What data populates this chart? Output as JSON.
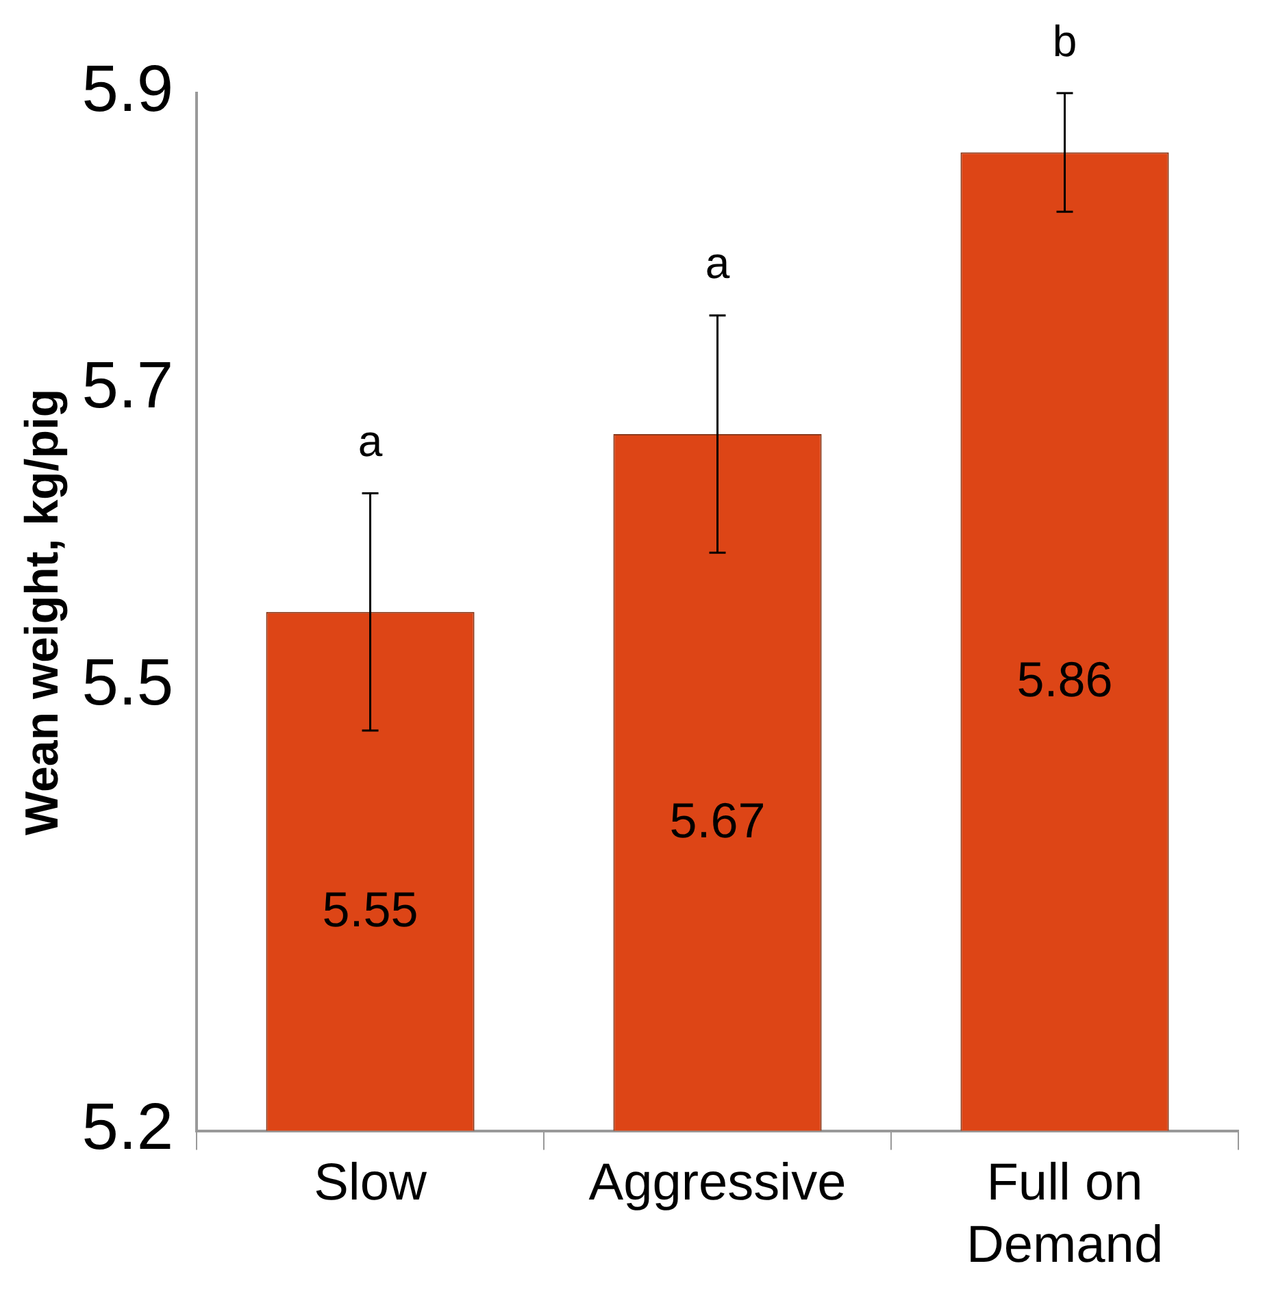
{
  "chart_data": {
    "type": "bar",
    "ylabel": "Wean weight, kg/pig",
    "categories": [
      "Slow",
      "Aggressive",
      "Full on Demand"
    ],
    "values": [
      5.55,
      5.67,
      5.86
    ],
    "errors": [
      0.08,
      0.08,
      0.04
    ],
    "color": "#dd4516",
    "ylim": [
      5.2,
      5.9
    ],
    "yticks": [
      5.2,
      5.5,
      5.7,
      5.9
    ],
    "grid": false,
    "legend": false,
    "data_labels": true,
    "annotations": [
      {
        "text": "a",
        "x": "Slow",
        "y": 5.63
      },
      {
        "text": "a",
        "x": "Aggressive",
        "y": 5.75
      },
      {
        "text": "b",
        "x": "Full on Demand",
        "y": 5.9
      }
    ]
  }
}
